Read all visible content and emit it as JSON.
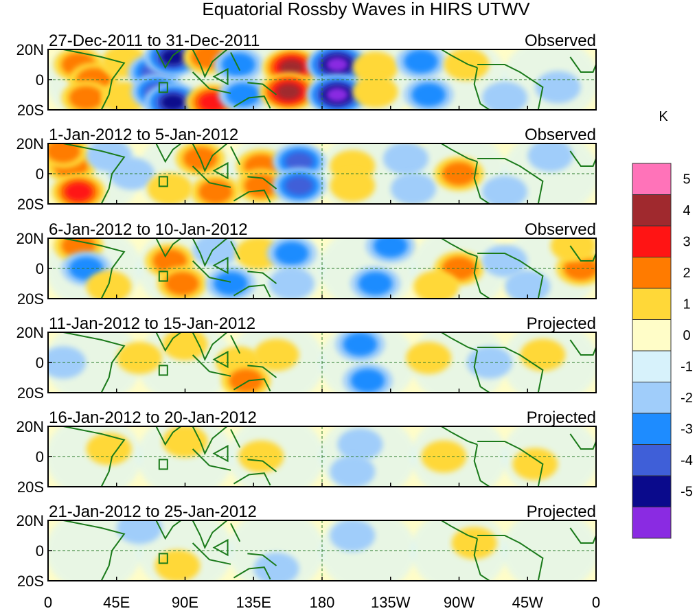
{
  "chart_data": {
    "type": "heatmap",
    "title": "Equatorial Rossby Waves in HIRS UTWV",
    "units": "K",
    "xlabel": "",
    "ylabel": "",
    "x_ticks": [
      "0",
      "45E",
      "90E",
      "135E",
      "180",
      "135W",
      "90W",
      "45W",
      "0"
    ],
    "y_ticks": [
      "20N",
      "0",
      "20S"
    ],
    "xlim": [
      0,
      360
    ],
    "ylim": [
      -20,
      20
    ],
    "colorbar": {
      "levels": [
        -5,
        -4,
        -3,
        -2,
        -1,
        0,
        1,
        2,
        3,
        4,
        5
      ],
      "labels": [
        "-5",
        "-4",
        "-3",
        "-2",
        "-1",
        "0",
        "1",
        "2",
        "3",
        "4",
        "5"
      ],
      "colors": [
        "#8a2be2",
        "#0a0a8c",
        "#3f5fd8",
        "#1e8cff",
        "#a0cdfa",
        "#d7f2fb",
        "#fffdc8",
        "#ffd838",
        "#ff7b00",
        "#ff1414",
        "#a0292e",
        "#ff73b9"
      ]
    },
    "panels": [
      {
        "period": "27-Dec-2011 to 31-Dec-2011",
        "status": "Observed",
        "features": [
          {
            "lon": 20,
            "lat": 10,
            "value": 2
          },
          {
            "lon": 30,
            "lat": 0,
            "value": 2
          },
          {
            "lon": 25,
            "lat": -12,
            "value": 2
          },
          {
            "lon": 50,
            "lat": 12,
            "value": 1
          },
          {
            "lon": 50,
            "lat": -12,
            "value": 1
          },
          {
            "lon": 70,
            "lat": 5,
            "value": -3
          },
          {
            "lon": 72,
            "lat": -8,
            "value": -3
          },
          {
            "lon": 82,
            "lat": 15,
            "value": -4
          },
          {
            "lon": 82,
            "lat": -15,
            "value": -4
          },
          {
            "lon": 105,
            "lat": 15,
            "value": 2
          },
          {
            "lon": 108,
            "lat": -15,
            "value": 3
          },
          {
            "lon": 125,
            "lat": 10,
            "value": -2
          },
          {
            "lon": 128,
            "lat": -10,
            "value": -2
          },
          {
            "lon": 160,
            "lat": 8,
            "value": 4
          },
          {
            "lon": 158,
            "lat": -8,
            "value": 4
          },
          {
            "lon": 190,
            "lat": 10,
            "value": -5
          },
          {
            "lon": 190,
            "lat": -10,
            "value": -5
          },
          {
            "lon": 215,
            "lat": 8,
            "value": 1
          },
          {
            "lon": 215,
            "lat": -8,
            "value": 1
          },
          {
            "lon": 245,
            "lat": 12,
            "value": -2
          },
          {
            "lon": 250,
            "lat": -10,
            "value": -2
          },
          {
            "lon": 275,
            "lat": 10,
            "value": 1
          },
          {
            "lon": 300,
            "lat": -12,
            "value": -1
          },
          {
            "lon": 335,
            "lat": -5,
            "value": -1
          }
        ]
      },
      {
        "period": "1-Jan-2012 to 5-Jan-2012",
        "status": "Observed",
        "features": [
          {
            "lon": 15,
            "lat": 5,
            "value": 2
          },
          {
            "lon": 20,
            "lat": -12,
            "value": 3
          },
          {
            "lon": 10,
            "lat": 15,
            "value": 2
          },
          {
            "lon": 55,
            "lat": 0,
            "value": -1
          },
          {
            "lon": 40,
            "lat": 12,
            "value": -1
          },
          {
            "lon": 80,
            "lat": -10,
            "value": 1
          },
          {
            "lon": 100,
            "lat": 10,
            "value": 2
          },
          {
            "lon": 110,
            "lat": -12,
            "value": 2
          },
          {
            "lon": 140,
            "lat": 5,
            "value": 2
          },
          {
            "lon": 140,
            "lat": -8,
            "value": 2
          },
          {
            "lon": 165,
            "lat": 8,
            "value": -3
          },
          {
            "lon": 165,
            "lat": -8,
            "value": -3
          },
          {
            "lon": 200,
            "lat": 5,
            "value": 1
          },
          {
            "lon": 200,
            "lat": -8,
            "value": 1
          },
          {
            "lon": 235,
            "lat": 10,
            "value": -1
          },
          {
            "lon": 240,
            "lat": -10,
            "value": -1
          },
          {
            "lon": 270,
            "lat": 0,
            "value": 2
          },
          {
            "lon": 300,
            "lat": -12,
            "value": -1
          },
          {
            "lon": 330,
            "lat": 12,
            "value": -1
          }
        ]
      },
      {
        "period": "6-Jan-2012 to 10-Jan-2012",
        "status": "Observed",
        "features": [
          {
            "lon": 20,
            "lat": 15,
            "value": 2
          },
          {
            "lon": 25,
            "lat": 0,
            "value": -2
          },
          {
            "lon": 40,
            "lat": -12,
            "value": 1
          },
          {
            "lon": 80,
            "lat": 5,
            "value": 2
          },
          {
            "lon": 88,
            "lat": -10,
            "value": 2
          },
          {
            "lon": 110,
            "lat": 12,
            "value": -1
          },
          {
            "lon": 120,
            "lat": -10,
            "value": -2
          },
          {
            "lon": 138,
            "lat": 10,
            "value": 1
          },
          {
            "lon": 160,
            "lat": 10,
            "value": -2
          },
          {
            "lon": 160,
            "lat": -10,
            "value": -1
          },
          {
            "lon": 225,
            "lat": 15,
            "value": -2
          },
          {
            "lon": 215,
            "lat": -10,
            "value": -2
          },
          {
            "lon": 270,
            "lat": 0,
            "value": 2
          },
          {
            "lon": 255,
            "lat": -12,
            "value": 1
          },
          {
            "lon": 300,
            "lat": 5,
            "value": -1
          },
          {
            "lon": 315,
            "lat": -12,
            "value": -1
          },
          {
            "lon": 350,
            "lat": 0,
            "value": 2
          },
          {
            "lon": 345,
            "lat": 15,
            "value": 1
          }
        ]
      },
      {
        "period": "11-Jan-2012 to 15-Jan-2012",
        "status": "Projected",
        "features": [
          {
            "lon": 10,
            "lat": 0,
            "value": -1
          },
          {
            "lon": 60,
            "lat": 3,
            "value": 1
          },
          {
            "lon": 90,
            "lat": 12,
            "value": 1
          },
          {
            "lon": 125,
            "lat": 0,
            "value": 1
          },
          {
            "lon": 130,
            "lat": -12,
            "value": 2
          },
          {
            "lon": 150,
            "lat": 5,
            "value": 1
          },
          {
            "lon": 205,
            "lat": 12,
            "value": -2
          },
          {
            "lon": 210,
            "lat": -12,
            "value": -2
          },
          {
            "lon": 250,
            "lat": 3,
            "value": 1
          },
          {
            "lon": 290,
            "lat": 0,
            "value": -1
          },
          {
            "lon": 325,
            "lat": 5,
            "value": 1
          }
        ]
      },
      {
        "period": "16-Jan-2012 to 20-Jan-2012",
        "status": "Projected",
        "features": [
          {
            "lon": 40,
            "lat": 5,
            "value": 1
          },
          {
            "lon": 90,
            "lat": 10,
            "value": 1
          },
          {
            "lon": 140,
            "lat": 0,
            "value": 1
          },
          {
            "lon": 205,
            "lat": 8,
            "value": -1
          },
          {
            "lon": 200,
            "lat": -10,
            "value": -1
          },
          {
            "lon": 260,
            "lat": 0,
            "value": 1
          },
          {
            "lon": 320,
            "lat": -5,
            "value": 1
          }
        ]
      },
      {
        "period": "21-Jan-2012 to 25-Jan-2012",
        "status": "Projected",
        "features": [
          {
            "lon": 60,
            "lat": 15,
            "value": -1
          },
          {
            "lon": 85,
            "lat": -10,
            "value": 1
          },
          {
            "lon": 150,
            "lat": -12,
            "value": -1
          },
          {
            "lon": 200,
            "lat": 10,
            "value": -1
          },
          {
            "lon": 280,
            "lat": 5,
            "value": 1
          }
        ]
      }
    ]
  }
}
